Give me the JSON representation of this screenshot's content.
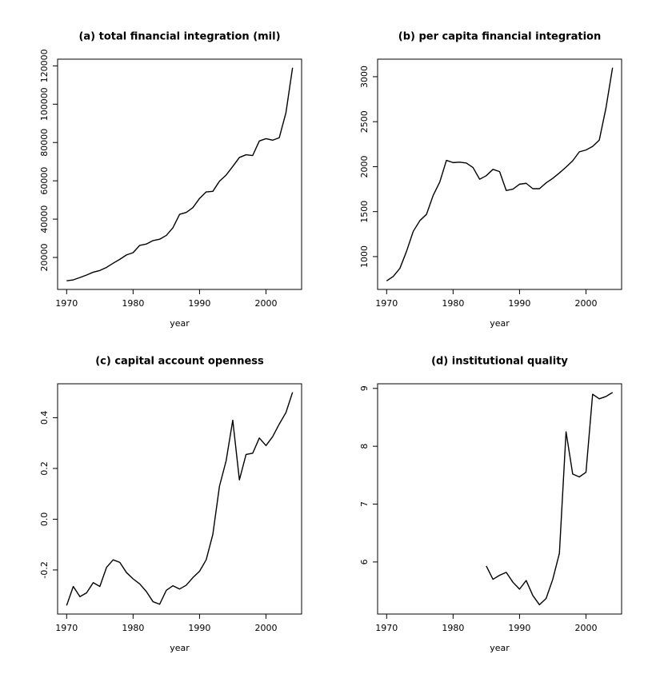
{
  "chart_data": [
    {
      "type": "line",
      "title": "(a) total financial integration (mil)",
      "xlabel": "year",
      "x": [
        1970,
        1971,
        1972,
        1973,
        1974,
        1975,
        1976,
        1977,
        1978,
        1979,
        1980,
        1981,
        1982,
        1983,
        1984,
        1985,
        1986,
        1987,
        1988,
        1989,
        1990,
        1991,
        1992,
        1993,
        1994,
        1995,
        1996,
        1997,
        1998,
        1999,
        2000,
        2001,
        2002,
        2003,
        2004
      ],
      "values": [
        7800,
        8300,
        9500,
        10800,
        12300,
        13200,
        14800,
        17000,
        19000,
        21300,
        22500,
        26300,
        27000,
        28800,
        29500,
        31500,
        35500,
        42500,
        43500,
        46000,
        50800,
        54200,
        54500,
        59800,
        63000,
        67500,
        72200,
        73600,
        73200,
        80800,
        82000,
        81200,
        82500,
        95500,
        119000
      ],
      "color": "#000000",
      "xlim": [
        1968.64,
        2005.36
      ],
      "xticks": [
        1970,
        1980,
        1990,
        2000
      ],
      "ylim": [
        3300,
        123500
      ],
      "yticks": [
        20000,
        40000,
        60000,
        80000,
        100000,
        120000
      ]
    },
    {
      "type": "line",
      "title": "(b) per capita financial integration",
      "xlabel": "year",
      "x": [
        1970,
        1971,
        1972,
        1973,
        1974,
        1975,
        1976,
        1977,
        1978,
        1979,
        1980,
        1981,
        1982,
        1983,
        1984,
        1985,
        1986,
        1987,
        1988,
        1989,
        1990,
        1991,
        1992,
        1993,
        1994,
        1995,
        1996,
        1997,
        1998,
        1999,
        2000,
        2001,
        2002,
        2003,
        2004
      ],
      "values": [
        730,
        780,
        870,
        1060,
        1280,
        1400,
        1470,
        1680,
        1830,
        2070,
        2045,
        2050,
        2040,
        1990,
        1860,
        1900,
        1970,
        1945,
        1735,
        1750,
        1805,
        1815,
        1755,
        1755,
        1820,
        1870,
        1930,
        1995,
        2065,
        2165,
        2185,
        2225,
        2295,
        2650,
        3100
      ],
      "color": "#000000",
      "xlim": [
        1968.64,
        2005.36
      ],
      "xticks": [
        1970,
        1980,
        1990,
        2000
      ],
      "ylim": [
        635,
        3195
      ],
      "yticks": [
        1000,
        1500,
        2000,
        2500,
        3000
      ]
    },
    {
      "type": "line",
      "title": "(c) capital account openness",
      "xlabel": "year",
      "x": [
        1970,
        1971,
        1972,
        1973,
        1974,
        1975,
        1976,
        1977,
        1978,
        1979,
        1980,
        1981,
        1982,
        1983,
        1984,
        1985,
        1986,
        1987,
        1988,
        1989,
        1990,
        1991,
        1992,
        1993,
        1994,
        1995,
        1996,
        1997,
        1998,
        1999,
        2000,
        2001,
        2002,
        2003,
        2004
      ],
      "values": [
        -0.34,
        -0.265,
        -0.305,
        -0.29,
        -0.25,
        -0.265,
        -0.19,
        -0.16,
        -0.17,
        -0.21,
        -0.235,
        -0.255,
        -0.285,
        -0.325,
        -0.335,
        -0.28,
        -0.262,
        -0.275,
        -0.26,
        -0.23,
        -0.205,
        -0.16,
        -0.06,
        0.13,
        0.23,
        0.39,
        0.155,
        0.255,
        0.26,
        0.32,
        0.29,
        0.325,
        0.375,
        0.42,
        0.5
      ],
      "color": "#000000",
      "xlim": [
        1968.64,
        2005.36
      ],
      "xticks": [
        1970,
        1980,
        1990,
        2000
      ],
      "ylim": [
        -0.3736,
        0.5336
      ],
      "yticks": [
        -0.2,
        {
          "value": 0,
          "label": "0.0"
        },
        0.2,
        0.4
      ]
    },
    {
      "type": "line",
      "title": "(d) institutional quality",
      "xlabel": "year",
      "x": [
        1970,
        1971,
        1972,
        1973,
        1974,
        1975,
        1976,
        1977,
        1978,
        1979,
        1980,
        1981,
        1982,
        1983,
        1984,
        1985,
        1986,
        1987,
        1988,
        1989,
        1990,
        1991,
        1992,
        1993,
        1994,
        1995,
        1996,
        1997,
        1998,
        1999,
        2000,
        2001,
        2002,
        2003,
        2004
      ],
      "values": [
        null,
        null,
        null,
        null,
        null,
        null,
        null,
        null,
        null,
        null,
        null,
        null,
        null,
        null,
        null,
        5.93,
        5.7,
        5.77,
        5.82,
        5.65,
        5.53,
        5.68,
        5.42,
        5.26,
        5.37,
        5.7,
        6.15,
        8.25,
        7.52,
        7.47,
        7.55,
        8.9,
        8.82,
        8.86,
        8.93
      ],
      "color": "#000000",
      "xlim": [
        1968.64,
        2005.36
      ],
      "xticks": [
        1970,
        1980,
        1990,
        2000
      ],
      "ylim": [
        5.1,
        9.08
      ],
      "yticks": [
        6,
        7,
        8,
        9
      ]
    }
  ]
}
